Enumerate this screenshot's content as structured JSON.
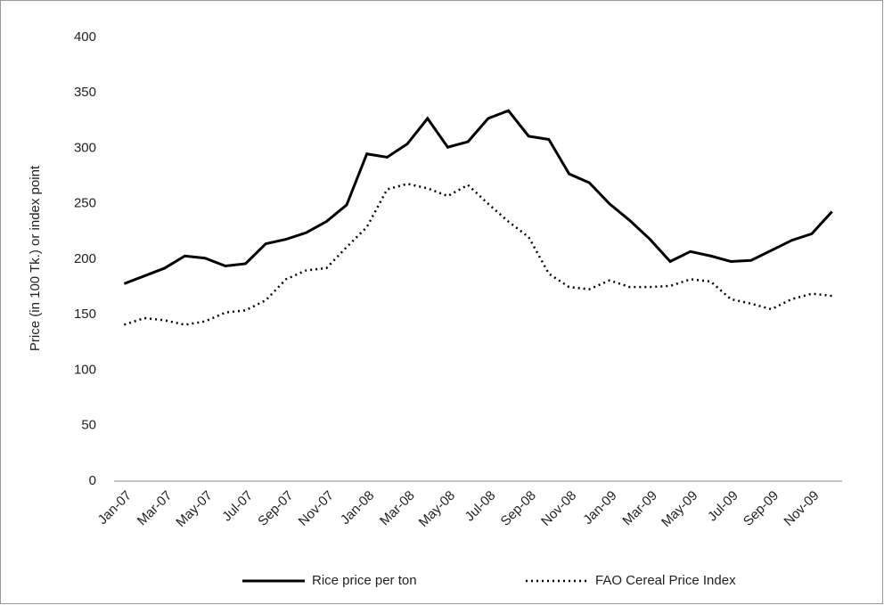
{
  "chart_data": {
    "type": "line",
    "ylabel": "Price (in 100 Tk.) or index point",
    "categories": [
      "Jan-07",
      null,
      "Mar-07",
      null,
      "May-07",
      null,
      "Jul-07",
      null,
      "Sep-07",
      null,
      "Nov-07",
      null,
      "Jan-08",
      null,
      "Mar-08",
      null,
      "May-08",
      null,
      "Jul-08",
      null,
      "Sep-08",
      null,
      "Nov-08",
      null,
      "Jan-09",
      null,
      "Mar-09",
      null,
      "May-09",
      null,
      "Jul-09",
      null,
      "Sep-09",
      null,
      "Nov-09",
      null
    ],
    "series": [
      {
        "name": "Rice price per ton",
        "color": "#000000",
        "style": "solid",
        "values": [
          178,
          185,
          192,
          203,
          201,
          194,
          196,
          214,
          218,
          224,
          234,
          249,
          295,
          292,
          304,
          327,
          301,
          306,
          327,
          334,
          311,
          308,
          277,
          269,
          250,
          235,
          218,
          198,
          207,
          203,
          198,
          199,
          208,
          217,
          223,
          243
        ]
      },
      {
        "name": "FAO Cereal Price Index",
        "color": "#000000",
        "style": "dotted",
        "values": [
          141,
          147,
          145,
          141,
          144,
          152,
          154,
          163,
          182,
          190,
          192,
          211,
          229,
          263,
          268,
          264,
          257,
          267,
          250,
          234,
          220,
          187,
          175,
          173,
          181,
          175,
          175,
          176,
          182,
          180,
          164,
          160,
          155,
          164,
          169,
          167
        ]
      }
    ],
    "ylim": [
      0,
      400
    ],
    "yticks": [
      0,
      50,
      100,
      150,
      200,
      250,
      300,
      350,
      400
    ],
    "grid": false,
    "legend": "bottom"
  }
}
